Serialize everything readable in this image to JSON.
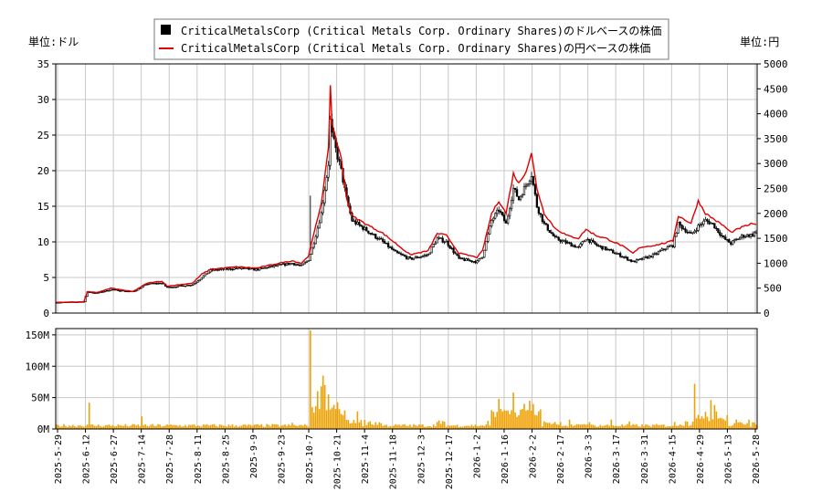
{
  "chart_data": {
    "type": "candlestick+line+volume-bar",
    "legend": {
      "position": "top-center",
      "items": [
        {
          "label": "CriticalMetalsCorp (Critical Metals Corp. Ordinary Shares)のドルベースの株価",
          "color": "#000000",
          "marker": "square"
        },
        {
          "label": "CriticalMetalsCorp (Critical Metals Corp. Ordinary Shares)の円ベースの株価",
          "color": "#e00000",
          "marker": "line"
        }
      ]
    },
    "left_unit": "単位:ドル",
    "right_unit": "単位:円",
    "price_axis_left": {
      "ylim": [
        0,
        35
      ],
      "ticks": [
        "0",
        "5",
        "10",
        "15",
        "20",
        "25",
        "30",
        "35"
      ]
    },
    "price_axis_right": {
      "ylim": [
        0,
        5000
      ],
      "ticks": [
        "0",
        "500",
        "1000",
        "1500",
        "2000",
        "2500",
        "3000",
        "3500",
        "4000",
        "4500",
        "5000"
      ]
    },
    "volume_axis": {
      "ylim": [
        0,
        160
      ],
      "ticks": [
        "0M",
        "50M",
        "100M",
        "150M"
      ]
    },
    "x_labels": [
      "2025-5-29",
      "2025-6-12",
      "2025-6-27",
      "2025-7-14",
      "2025-7-28",
      "2025-8-11",
      "2025-8-25",
      "2025-9-9",
      "2025-9-23",
      "2025-10-7",
      "2025-10-21",
      "2025-11-4",
      "2025-11-18",
      "2025-12-3",
      "2025-12-17",
      "2026-1-2",
      "2026-1-16",
      "2026-2-2",
      "2026-2-17",
      "2026-3-3",
      "2026-3-17",
      "2026-3-31",
      "2026-4-15",
      "2026-4-29",
      "2026-5-13",
      "2026-5-28"
    ],
    "grid": true,
    "colors": {
      "candle": "#000000",
      "yen_line": "#e00000",
      "volume": "#f0a000",
      "grid": "#c8c8c8"
    },
    "usd_close_anchors": [
      [
        0,
        1.5
      ],
      [
        15,
        1.6
      ],
      [
        17,
        3.0
      ],
      [
        22,
        2.8
      ],
      [
        30,
        3.3
      ],
      [
        42,
        3.0
      ],
      [
        50,
        4.1
      ],
      [
        58,
        4.2
      ],
      [
        61,
        3.6
      ],
      [
        75,
        4.0
      ],
      [
        80,
        5.0
      ],
      [
        85,
        6.0
      ],
      [
        100,
        6.3
      ],
      [
        110,
        6.1
      ],
      [
        120,
        6.6
      ],
      [
        130,
        7.0
      ],
      [
        135,
        6.6
      ],
      [
        139,
        7.5
      ],
      [
        142,
        10.0
      ],
      [
        146,
        14.0
      ],
      [
        150,
        21.0
      ],
      [
        151,
        27.0
      ],
      [
        152,
        25.0
      ],
      [
        157,
        20.0
      ],
      [
        160,
        16.0
      ],
      [
        163,
        13.0
      ],
      [
        170,
        11.8
      ],
      [
        180,
        10.0
      ],
      [
        187,
        8.5
      ],
      [
        195,
        7.6
      ],
      [
        205,
        8.2
      ],
      [
        210,
        10.5
      ],
      [
        215,
        10.0
      ],
      [
        222,
        7.6
      ],
      [
        232,
        7.2
      ],
      [
        235,
        8.0
      ],
      [
        240,
        13.0
      ],
      [
        244,
        14.5
      ],
      [
        248,
        12.5
      ],
      [
        252,
        17.5
      ],
      [
        255,
        16.0
      ],
      [
        259,
        18.0
      ],
      [
        262,
        19.5
      ],
      [
        265,
        15.0
      ],
      [
        269,
        12.5
      ],
      [
        275,
        10.5
      ],
      [
        282,
        9.8
      ],
      [
        288,
        9.2
      ],
      [
        292,
        10.5
      ],
      [
        298,
        9.5
      ],
      [
        303,
        9.0
      ],
      [
        312,
        8.0
      ],
      [
        318,
        7.2
      ],
      [
        322,
        7.5
      ],
      [
        330,
        8.2
      ],
      [
        335,
        9.0
      ],
      [
        340,
        9.5
      ],
      [
        343,
        12.5
      ],
      [
        350,
        11.0
      ],
      [
        354,
        12.2
      ],
      [
        358,
        13.0
      ],
      [
        362,
        12.5
      ],
      [
        368,
        10.5
      ],
      [
        372,
        9.8
      ],
      [
        378,
        10.8
      ],
      [
        384,
        11.0
      ],
      [
        386,
        11.5
      ]
    ],
    "jpy_close_anchors": [
      [
        0,
        215
      ],
      [
        15,
        225
      ],
      [
        17,
        430
      ],
      [
        22,
        410
      ],
      [
        30,
        500
      ],
      [
        42,
        430
      ],
      [
        50,
        600
      ],
      [
        58,
        640
      ],
      [
        61,
        540
      ],
      [
        75,
        600
      ],
      [
        80,
        780
      ],
      [
        85,
        880
      ],
      [
        100,
        930
      ],
      [
        110,
        900
      ],
      [
        120,
        980
      ],
      [
        130,
        1050
      ],
      [
        135,
        1000
      ],
      [
        139,
        1150
      ],
      [
        142,
        1600
      ],
      [
        146,
        2200
      ],
      [
        150,
        3300
      ],
      [
        151,
        4600
      ],
      [
        152,
        3800
      ],
      [
        157,
        3100
      ],
      [
        160,
        2300
      ],
      [
        163,
        1950
      ],
      [
        170,
        1800
      ],
      [
        180,
        1600
      ],
      [
        187,
        1400
      ],
      [
        195,
        1170
      ],
      [
        205,
        1250
      ],
      [
        210,
        1600
      ],
      [
        215,
        1560
      ],
      [
        222,
        1200
      ],
      [
        232,
        1120
      ],
      [
        235,
        1250
      ],
      [
        240,
        2000
      ],
      [
        244,
        2250
      ],
      [
        248,
        2000
      ],
      [
        252,
        2800
      ],
      [
        255,
        2600
      ],
      [
        259,
        2850
      ],
      [
        262,
        3200
      ],
      [
        265,
        2500
      ],
      [
        269,
        2000
      ],
      [
        275,
        1700
      ],
      [
        282,
        1550
      ],
      [
        288,
        1500
      ],
      [
        292,
        1680
      ],
      [
        298,
        1550
      ],
      [
        303,
        1500
      ],
      [
        312,
        1350
      ],
      [
        318,
        1200
      ],
      [
        322,
        1320
      ],
      [
        330,
        1360
      ],
      [
        335,
        1400
      ],
      [
        340,
        1450
      ],
      [
        343,
        1950
      ],
      [
        350,
        1800
      ],
      [
        354,
        2250
      ],
      [
        358,
        2000
      ],
      [
        362,
        1900
      ],
      [
        368,
        1750
      ],
      [
        372,
        1620
      ],
      [
        378,
        1720
      ],
      [
        384,
        1800
      ],
      [
        386,
        1760
      ]
    ],
    "volume_spikes_m": [
      [
        18,
        42
      ],
      [
        47,
        20
      ],
      [
        130,
        10
      ],
      [
        140,
        157
      ],
      [
        144,
        60
      ],
      [
        146,
        68
      ],
      [
        147,
        85
      ],
      [
        148,
        70
      ],
      [
        150,
        55
      ],
      [
        158,
        22
      ],
      [
        166,
        28
      ],
      [
        240,
        30
      ],
      [
        244,
        48
      ],
      [
        247,
        30
      ],
      [
        252,
        58
      ],
      [
        258,
        40
      ],
      [
        261,
        45
      ],
      [
        263,
        40
      ],
      [
        266,
        28
      ],
      [
        283,
        15
      ],
      [
        306,
        15
      ],
      [
        316,
        12
      ],
      [
        352,
        72
      ],
      [
        361,
        46
      ],
      [
        363,
        38
      ],
      [
        370,
        22
      ],
      [
        375,
        15
      ]
    ]
  }
}
